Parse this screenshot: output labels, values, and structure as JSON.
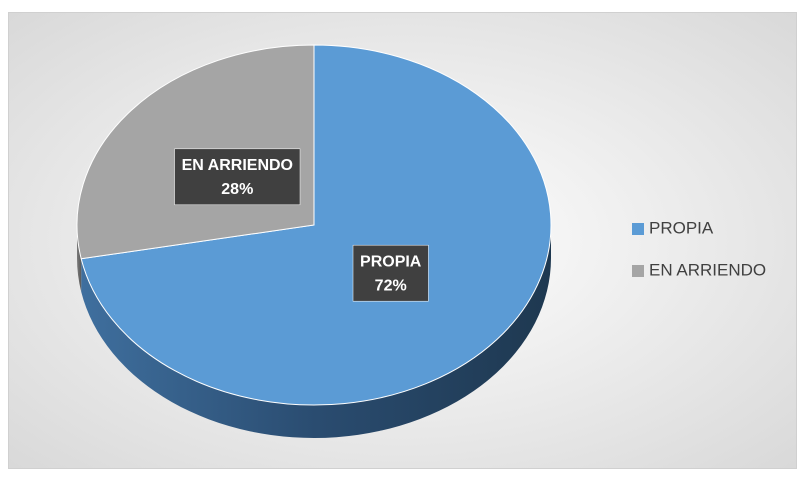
{
  "chart_data": {
    "type": "pie",
    "categories": [
      "PROPIA",
      "EN ARRIENDO"
    ],
    "values": [
      72,
      28
    ],
    "value_labels": [
      "72%",
      "28%"
    ],
    "colors": [
      "#5b9bd5",
      "#a5a5a5"
    ],
    "legend": "right"
  }
}
